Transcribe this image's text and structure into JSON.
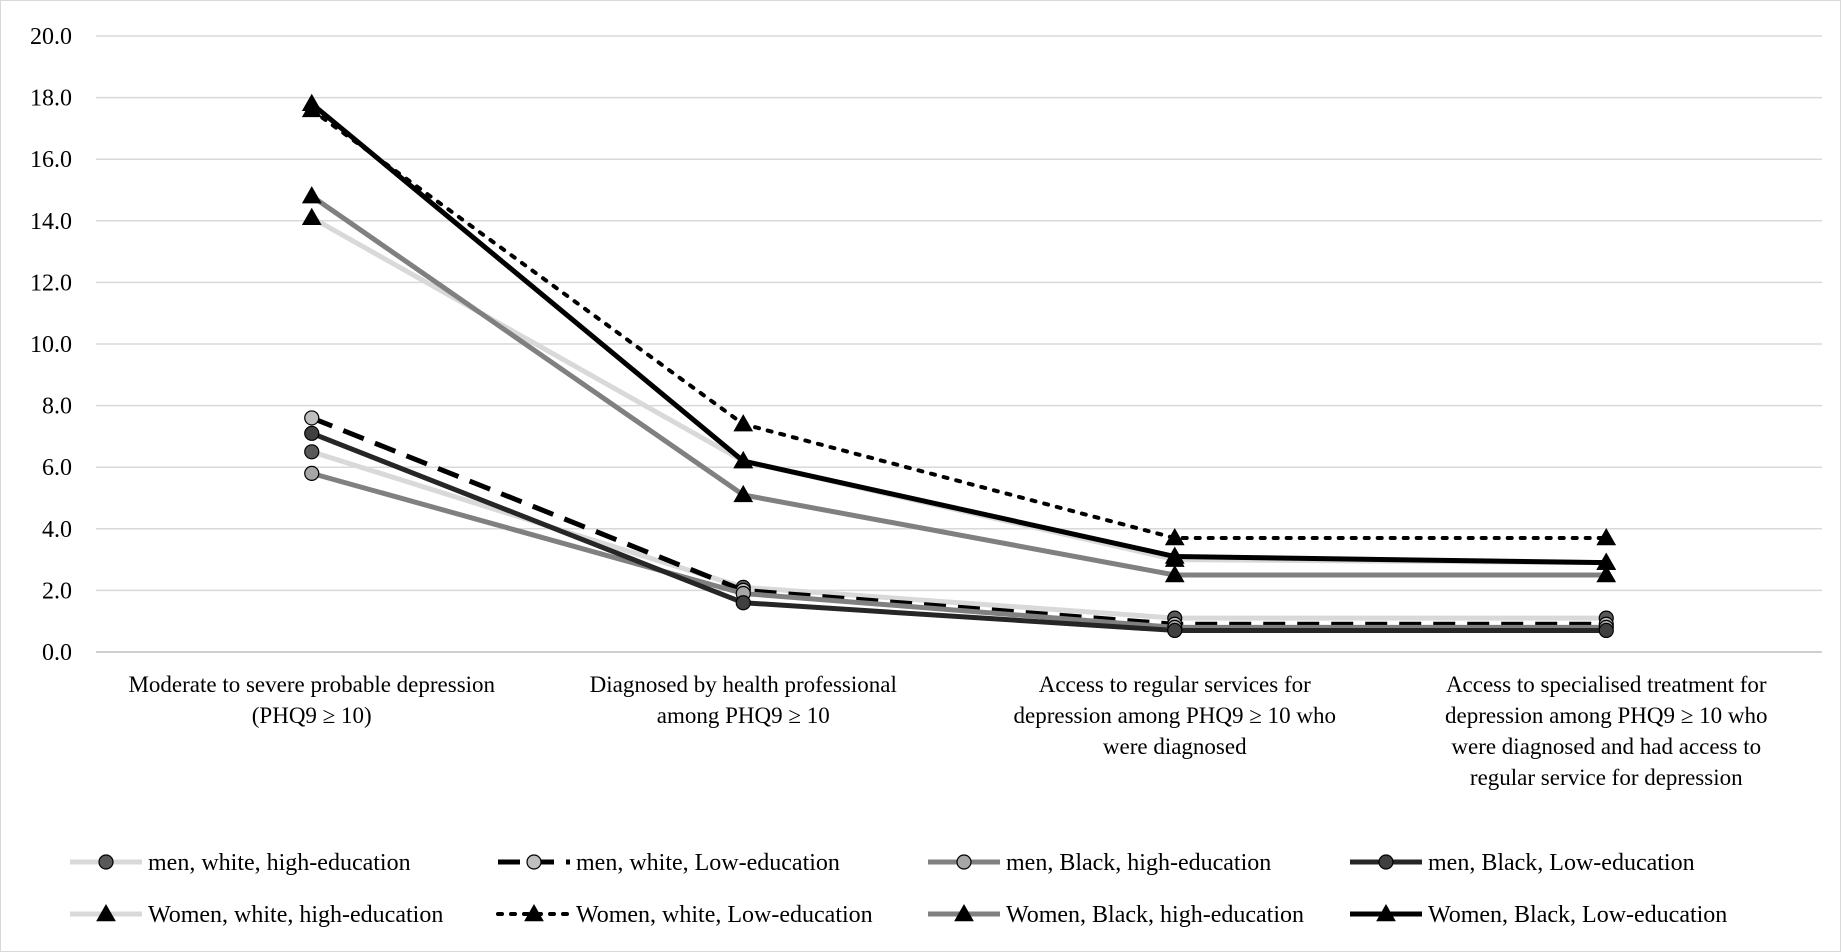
{
  "chart_data": {
    "type": "line",
    "title": "",
    "xlabel": "",
    "ylabel": "",
    "ylim": [
      0,
      20
    ],
    "y_ticks": [
      "0.0",
      "2.0",
      "4.0",
      "6.0",
      "8.0",
      "10.0",
      "12.0",
      "14.0",
      "16.0",
      "18.0",
      "20.0"
    ],
    "grid": true,
    "legend_position": "bottom",
    "categories": [
      [
        "Moderate to severe probable depression",
        "(PHQ9 ≥ 10)"
      ],
      [
        "Diagnosed by health professional",
        "among PHQ9 ≥ 10"
      ],
      [
        "Access to regular services for",
        "depression among PHQ9 ≥ 10 who",
        "were diagnosed"
      ],
      [
        "Access to specialised treatment for",
        "depression among PHQ9 ≥ 10 who",
        "were diagnosed and had access to",
        "regular service for depression"
      ]
    ],
    "series": [
      {
        "name": "men, white, high-education",
        "values": [
          6.5,
          2.1,
          1.1,
          1.1
        ],
        "color": "#d9d9d9",
        "marker_fill": "#595959",
        "dash": "solid",
        "marker": "circle"
      },
      {
        "name": "men, white, Low-education",
        "values": [
          7.6,
          2.0,
          0.9,
          0.9
        ],
        "color": "#000000",
        "marker_fill": "#bfbfbf",
        "dash": "dash",
        "marker": "circle"
      },
      {
        "name": "men, Black, high-education",
        "values": [
          5.8,
          1.9,
          0.8,
          0.8
        ],
        "color": "#808080",
        "marker_fill": "#a6a6a6",
        "dash": "solid",
        "marker": "circle"
      },
      {
        "name": "men, Black, Low-education",
        "values": [
          7.1,
          1.6,
          0.7,
          0.7
        ],
        "color": "#262626",
        "marker_fill": "#404040",
        "dash": "solid",
        "marker": "circle"
      },
      {
        "name": "Women, white, high-education",
        "values": [
          14.1,
          6.2,
          3.0,
          2.9
        ],
        "color": "#d9d9d9",
        "marker_fill": "#000000",
        "dash": "solid",
        "marker": "triangle"
      },
      {
        "name": "Women, white, Low-education",
        "values": [
          17.6,
          7.4,
          3.7,
          3.7
        ],
        "color": "#000000",
        "marker_fill": "#000000",
        "dash": "dot",
        "marker": "triangle"
      },
      {
        "name": "Women, Black, high-education",
        "values": [
          14.8,
          5.1,
          2.5,
          2.5
        ],
        "color": "#808080",
        "marker_fill": "#000000",
        "dash": "solid",
        "marker": "triangle"
      },
      {
        "name": "Women, Black, Low-education",
        "values": [
          17.8,
          6.2,
          3.1,
          2.9
        ],
        "color": "#000000",
        "marker_fill": "#000000",
        "dash": "solid",
        "marker": "triangle"
      }
    ]
  }
}
